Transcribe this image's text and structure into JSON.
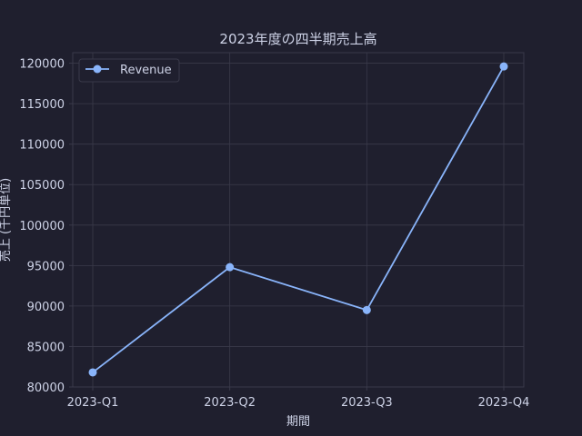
{
  "colors": {
    "background": "#1f1f2e",
    "plot_background": "#1f1f2e",
    "grid": "#3a3a4a",
    "text": "#cdd2e6",
    "series": "#89b4fa"
  },
  "chart_data": {
    "type": "line",
    "title": "2023年度の四半期売上高",
    "xlabel": "期間",
    "ylabel": "売上 (千円単位)",
    "categories": [
      "2023-Q1",
      "2023-Q2",
      "2023-Q3",
      "2023-Q4"
    ],
    "series": [
      {
        "name": "Revenue",
        "values": [
          81800,
          94800,
          89500,
          119600
        ]
      }
    ],
    "ylim": [
      80000,
      121300
    ],
    "yticks": [
      "80000",
      "85000",
      "90000",
      "95000",
      "100000",
      "105000",
      "110000",
      "115000",
      "120000"
    ],
    "grid": true,
    "legend": "top-left"
  }
}
